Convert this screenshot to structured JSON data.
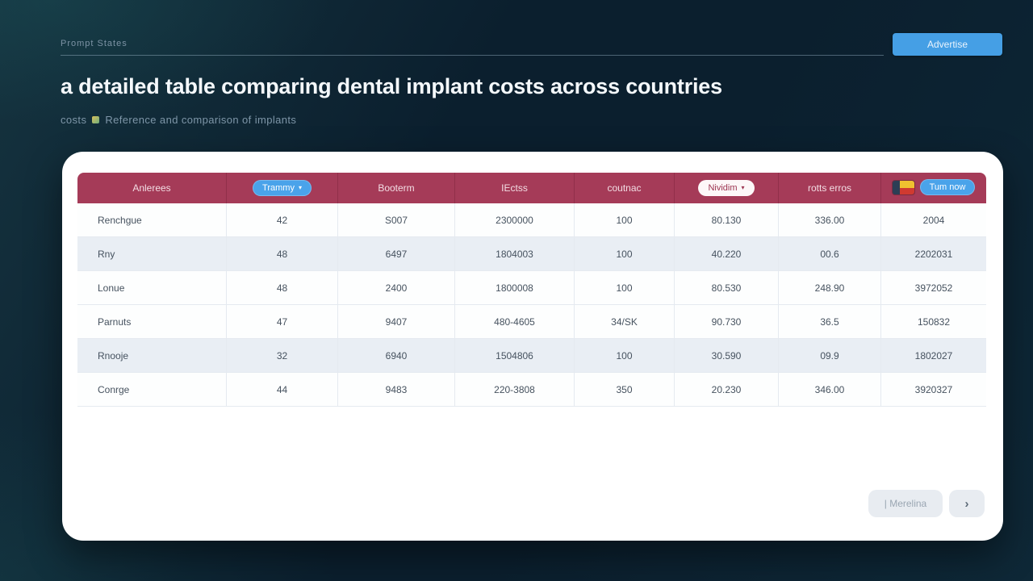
{
  "topbar": {
    "label": "Prompt States",
    "button_label": "Advertise"
  },
  "header": {
    "title": "a detailed table comparing dental implant costs across countries",
    "subtitle_prefix": "costs",
    "subtitle": "Reference and comparison of implants"
  },
  "table": {
    "headers": [
      {
        "label": "Anlerees",
        "type": "text"
      },
      {
        "label": "Trammy",
        "type": "blue-pill"
      },
      {
        "label": "Booterm",
        "type": "text"
      },
      {
        "label": "IEctss",
        "type": "text"
      },
      {
        "label": "coutnac",
        "type": "text"
      },
      {
        "label": "Nividim",
        "type": "white-pill"
      },
      {
        "label": "rotts erros",
        "type": "text"
      },
      {
        "label": "Tum now",
        "type": "flag-pill"
      }
    ],
    "rows": [
      [
        "Renchgue",
        "42",
        "S007",
        "2300000",
        "100",
        "80.130",
        "336.00",
        "2004"
      ],
      [
        "Rny",
        "48",
        "6497",
        "1804003",
        "100",
        "40.220",
        "00.6",
        "2202031"
      ],
      [
        "Lonue",
        "48",
        "2400",
        "1800008",
        "100",
        "80.530",
        "248.90",
        "3972052"
      ],
      [
        "Parnuts",
        "47",
        "9407",
        "480-4605",
        "34/SK",
        "90.730",
        "36.5",
        "150832"
      ],
      [
        "Rnooje",
        "32",
        "6940",
        "1504806",
        "100",
        "30.590",
        "09.9",
        "1802027"
      ],
      [
        "Conrge",
        "44",
        "9483",
        "220-3808",
        "350",
        "20.230",
        "346.00",
        "3920327"
      ]
    ]
  },
  "pagination": {
    "prev_label": "|  Merelina",
    "next_label": "›"
  },
  "icons": {
    "caret_down": "▾"
  },
  "colors": {
    "background_navy": "#0b1f2e",
    "header_maroon": "#a53b58",
    "accent_blue": "#459fe5",
    "row_alt": "#e9eef4",
    "card": "#ffffff"
  }
}
